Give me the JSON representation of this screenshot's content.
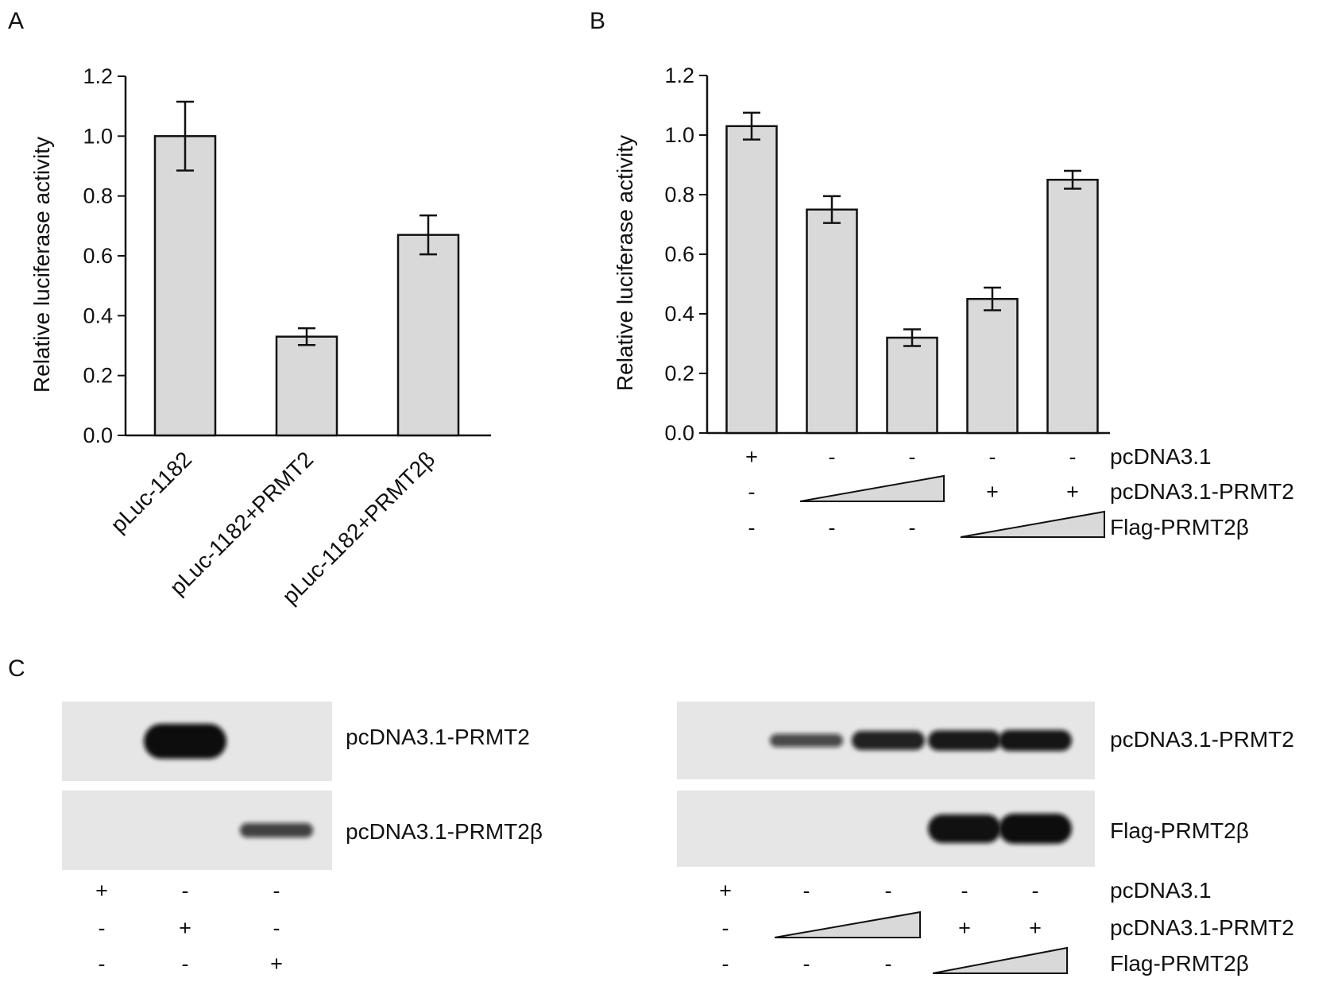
{
  "panel_labels": {
    "A": "A",
    "B": "B",
    "C": "C"
  },
  "chart_data": [
    {
      "panel": "A",
      "type": "bar",
      "title": "",
      "xlabel": "",
      "ylabel": "Relative luciferase activity",
      "ylim": [
        0,
        1.2
      ],
      "yticks": [
        "0.0",
        "0.2",
        "0.4",
        "0.6",
        "0.8",
        "1.0",
        "1.2"
      ],
      "categories": [
        "pLuc-1182",
        "pLuc-1182+PRMT2",
        "pLuc-1182+PRMT2β"
      ],
      "values": [
        1.0,
        0.33,
        0.67
      ],
      "errors": [
        0.115,
        0.028,
        0.065
      ],
      "bar_color": "#d9d9d9",
      "grid": false
    },
    {
      "panel": "B",
      "type": "bar",
      "title": "",
      "xlabel": "",
      "ylabel": "Relative luciferase activity",
      "ylim": [
        0,
        1.2
      ],
      "yticks": [
        "0.0",
        "0.2",
        "0.4",
        "0.6",
        "0.8",
        "1.0",
        "1.2"
      ],
      "values": [
        1.03,
        0.75,
        0.32,
        0.45,
        0.85
      ],
      "errors": [
        0.045,
        0.045,
        0.028,
        0.038,
        0.03
      ],
      "bar_color": "#d9d9d9",
      "grid": false,
      "conditions": [
        {
          "label": "pcDNA3.1",
          "signs": [
            "+",
            "-",
            "-",
            "-",
            "-"
          ]
        },
        {
          "label": "pcDNA3.1-PRMT2",
          "signs": [
            "-",
            "",
            "",
            "+",
            "+"
          ],
          "wedge": [
            1,
            2
          ]
        },
        {
          "label": "Flag-PRMT2β",
          "signs": [
            "-",
            "-",
            "-",
            "",
            ""
          ],
          "wedge": [
            3,
            4
          ]
        }
      ]
    }
  ],
  "panel_c": {
    "left": {
      "blots": [
        {
          "label": "pcDNA3.1-PRMT2",
          "bands": [
            0,
            1.0,
            0
          ]
        },
        {
          "label": "pcDNA3.1-PRMT2β",
          "bands": [
            0,
            0,
            0.6
          ]
        }
      ],
      "conditions": [
        {
          "signs": [
            "+",
            "-",
            "-"
          ]
        },
        {
          "signs": [
            "-",
            "+",
            "-"
          ]
        },
        {
          "signs": [
            "-",
            "-",
            "+"
          ]
        }
      ]
    },
    "right": {
      "blots": [
        {
          "label": "pcDNA3.1-PRMT2",
          "bands": [
            0,
            0.55,
            0.8,
            0.85,
            0.88
          ]
        },
        {
          "label": "Flag-PRMT2β",
          "bands": [
            0,
            0,
            0,
            0.9,
            0.95
          ]
        }
      ],
      "conditions": [
        {
          "label": "pcDNA3.1",
          "signs": [
            "+",
            "-",
            "-",
            "-",
            "-"
          ]
        },
        {
          "label": "pcDNA3.1-PRMT2",
          "signs": [
            "-",
            "",
            "",
            "+",
            "+"
          ],
          "wedge": [
            1,
            2
          ]
        },
        {
          "label": "Flag-PRMT2β",
          "signs": [
            "-",
            "-",
            "-",
            "",
            ""
          ],
          "wedge": [
            3,
            4
          ]
        }
      ]
    }
  },
  "colors": {
    "bar_fill": "#d9d9d9",
    "ink": "#111111",
    "blot_bg": "#e6e6e6",
    "band": "#0b0b0b"
  }
}
